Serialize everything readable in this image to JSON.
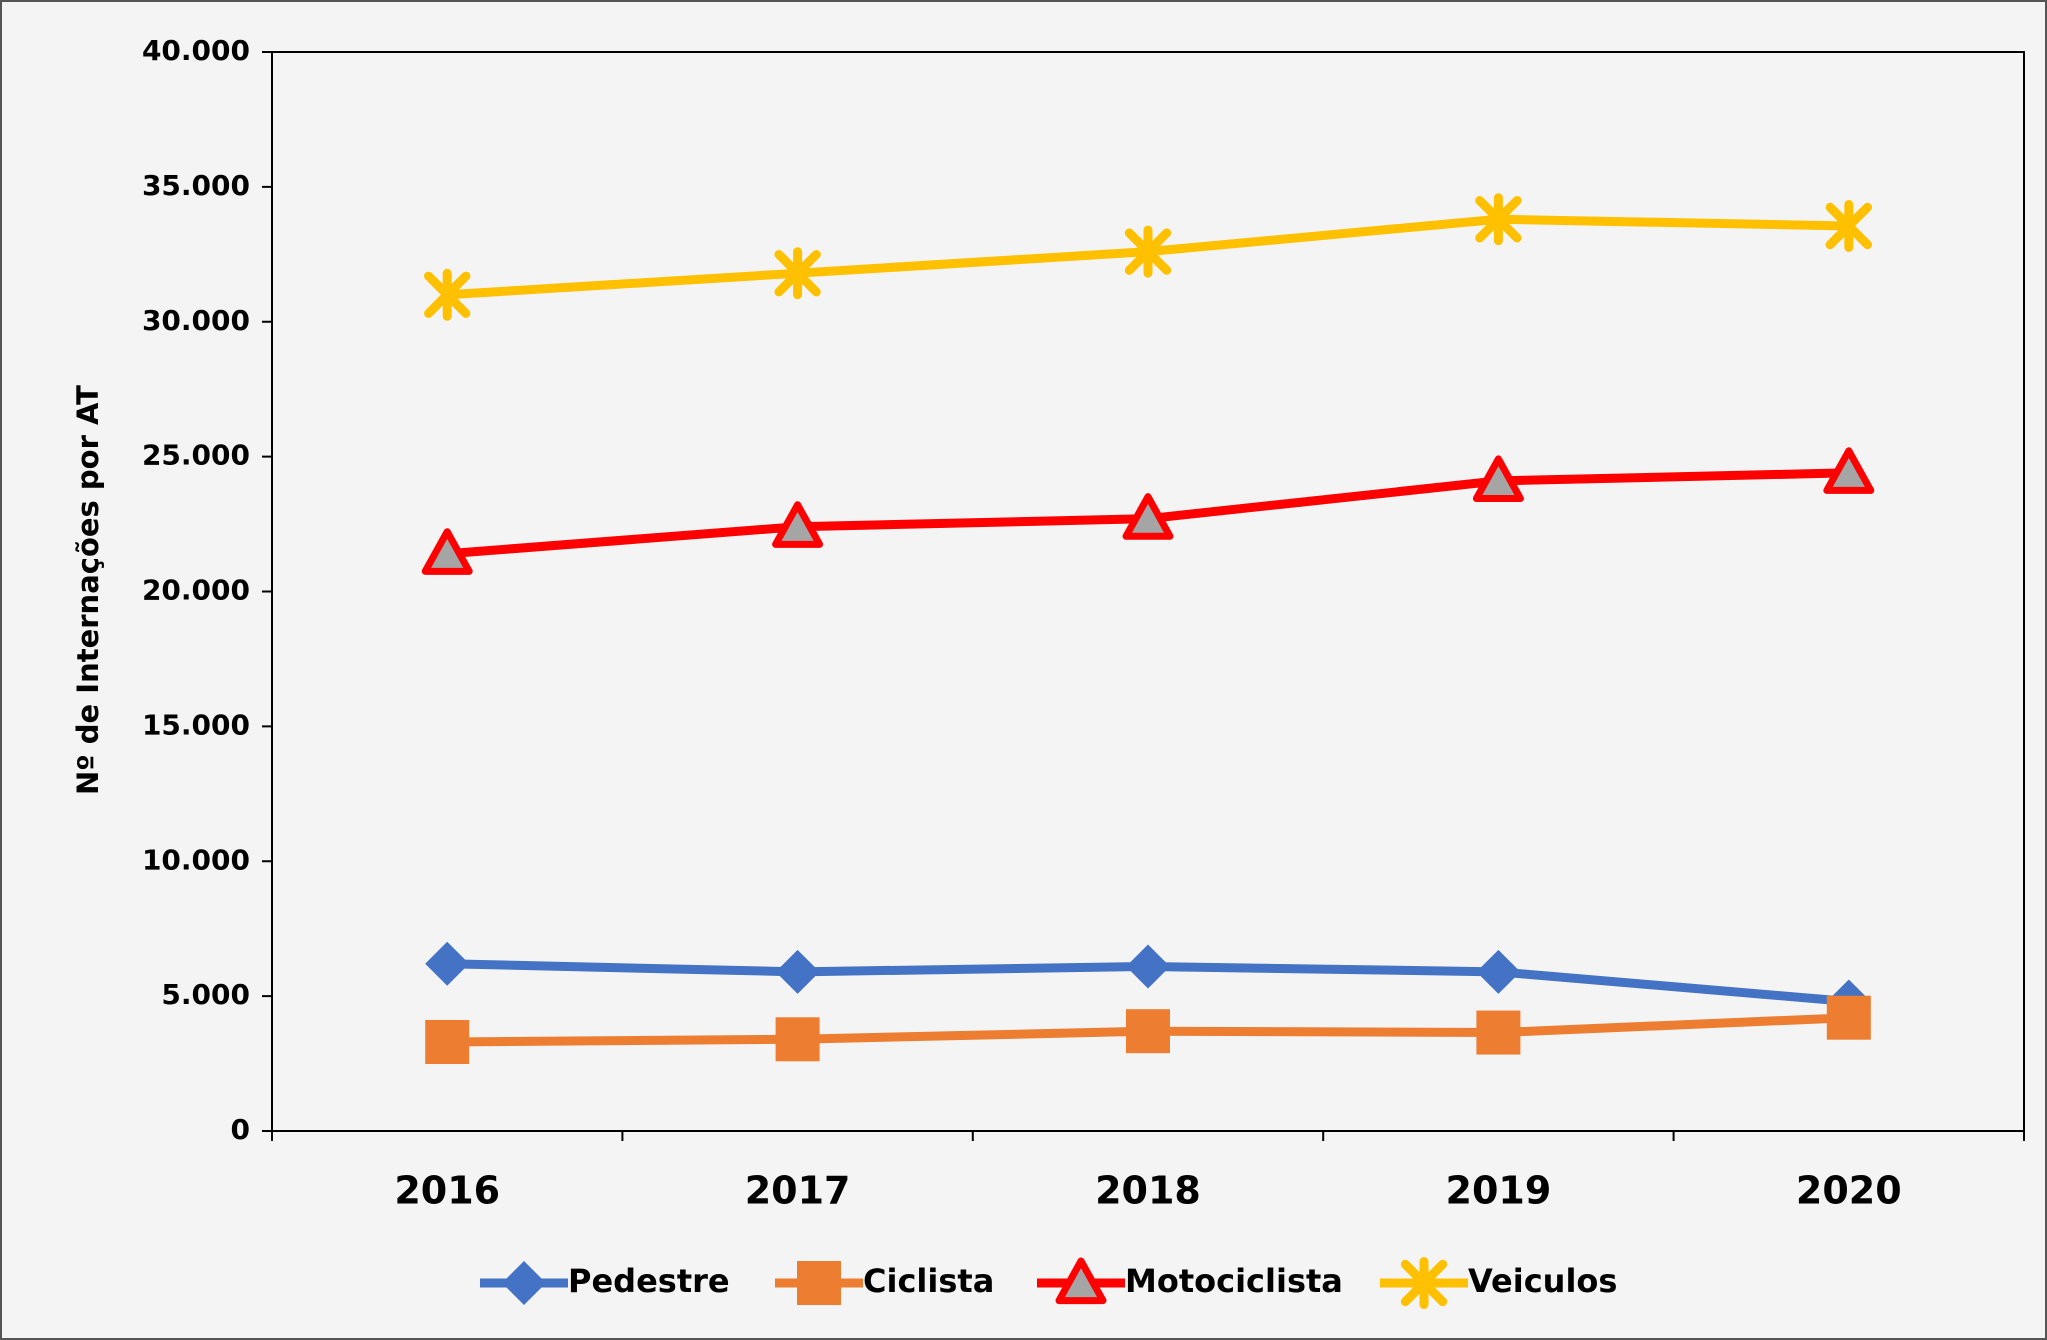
{
  "chart_data": {
    "type": "line",
    "y_label": "Nº de Internações por AT",
    "categories": [
      "2016",
      "2017",
      "2018",
      "2019",
      "2020"
    ],
    "series": [
      {
        "name": "Pedestre",
        "color": "#4472c4",
        "marker": "diamond",
        "values": [
          6200,
          5900,
          6100,
          5900,
          4800
        ]
      },
      {
        "name": "Ciclista",
        "color": "#ed7d31",
        "marker": "square",
        "values": [
          3300,
          3400,
          3700,
          3650,
          4200
        ]
      },
      {
        "name": "Motociclista",
        "color": "#ff0000",
        "marker": "triangle",
        "values": [
          21400,
          22400,
          22700,
          24100,
          24400
        ]
      },
      {
        "name": "Veiculos",
        "color": "#ffc000",
        "marker": "star",
        "values": [
          31000,
          31800,
          32600,
          33800,
          33550
        ]
      }
    ],
    "ylim": [
      0,
      40000
    ],
    "yticks": [
      0,
      {
        "value": 5000,
        "label": "5.000"
      },
      {
        "value": 10000,
        "label": "10.000"
      },
      {
        "value": 15000,
        "label": "15.000"
      },
      {
        "value": 20000,
        "label": "20.000"
      },
      {
        "value": 25000,
        "label": "25.000"
      },
      {
        "value": 30000,
        "label": "30.000"
      },
      {
        "value": 35000,
        "label": "35.000"
      },
      {
        "value": 40000,
        "label": "40.000"
      }
    ],
    "grid": false,
    "legend": "bottom"
  }
}
